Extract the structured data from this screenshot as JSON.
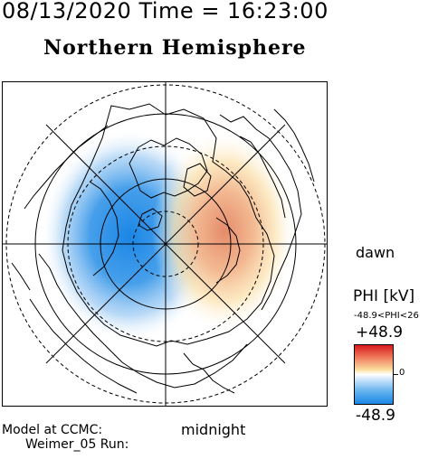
{
  "header": {
    "datetime": "08/13/2020 Time = 16:23:00",
    "title": "Northern Hemisphere"
  },
  "map": {
    "label_dawn": "dawn",
    "label_midnight": "midnight",
    "pattern_colors": {
      "negative_cell": "#1a86e6",
      "positive_cell": "#e8a070"
    }
  },
  "colorbar": {
    "title": "PHI [kV]",
    "range_text": "-48.9<PHI<26",
    "max_label": "+48.9",
    "zero_label": "0",
    "min_label": "-48.9",
    "colors": {
      "max": "#d7191c",
      "mid": "#ffffff",
      "min": "#1a86e6"
    }
  },
  "credits": {
    "line1": "Model at CCMC:",
    "line2": "Weimer_05 Run:"
  }
}
